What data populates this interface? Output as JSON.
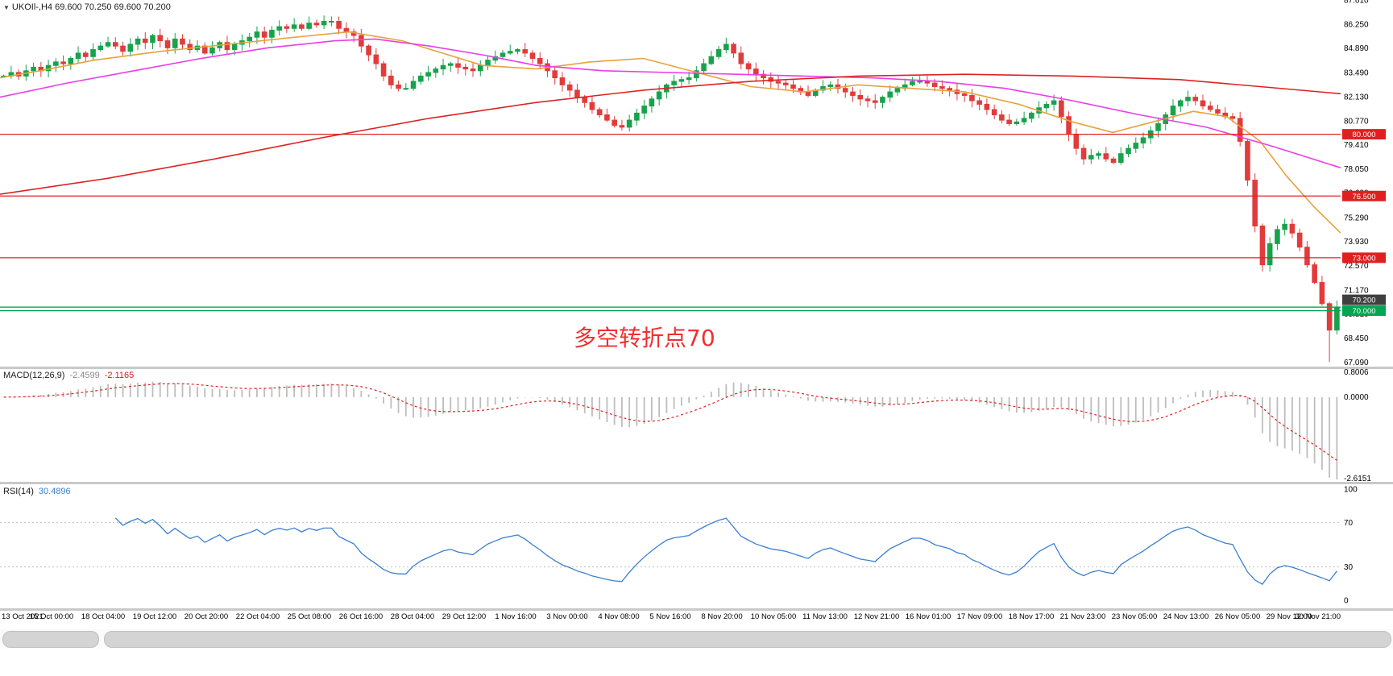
{
  "header": {
    "marker": "▼",
    "symbol_tf": "UKOIl-,H4",
    "ohlc": "69.600 70.250 69.600 70.200"
  },
  "annotation": {
    "text": "多空转折点70",
    "color": "#f22e2e"
  },
  "price_axis": {
    "labels": [
      87.61,
      86.25,
      84.89,
      83.49,
      82.13,
      80.77,
      79.41,
      78.05,
      76.69,
      75.29,
      73.93,
      72.57,
      71.17,
      69.81,
      68.45,
      67.09
    ]
  },
  "hlines": [
    {
      "price": 80.0,
      "label": "80.000",
      "color": "#e02020"
    },
    {
      "price": 76.5,
      "label": "76.500",
      "color": "#e02020"
    },
    {
      "price": 73.0,
      "label": "73.000",
      "color": "#e02020"
    }
  ],
  "support_lines": {
    "prices": [
      70.2,
      70.0
    ],
    "label": "70.000",
    "color": "#00a651"
  },
  "current_price_tag": {
    "label": "70.200",
    "bg": "#3f3f3f"
  },
  "macd_panel": {
    "name": "MACD(12,26,9)",
    "main_value": "-2.4599",
    "signal_value": "-2.1165",
    "axis_labels": [
      "0.8006",
      "0.0000",
      "-2.6151"
    ],
    "axis_values": [
      0.8006,
      0.0,
      -2.6151
    ],
    "histogram_color": "#bdbdbd",
    "signal_color": "#e02020"
  },
  "rsi_panel": {
    "name": "RSI(14)",
    "value": "30.4896",
    "axis_labels": [
      "100",
      "70",
      "30",
      "0"
    ],
    "levels": [
      70,
      30
    ],
    "line_color": "#3b7fd0"
  },
  "chart_data": {
    "type": "candlestick",
    "title": "UKOIl-,H4",
    "symbol": "UKOIl-",
    "timeframe": "H4",
    "current_ohlc": {
      "open": 69.6,
      "high": 70.25,
      "low": 69.6,
      "close": 70.2
    },
    "ylim": [
      66.83,
      87.61
    ],
    "up_color": "#18a24c",
    "down_color": "#e23b3b",
    "x_labels": [
      "13 Oct 2021",
      "15 Oct 00:00",
      "18 Oct 04:00",
      "19 Oct 12:00",
      "20 Oct 20:00",
      "22 Oct 04:00",
      "25 Oct 08:00",
      "26 Oct 16:00",
      "28 Oct 04:00",
      "29 Oct 12:00",
      "1 Nov 16:00",
      "3 Nov 00:00",
      "4 Nov 08:00",
      "5 Nov 16:00",
      "8 Nov 20:00",
      "10 Nov 05:00",
      "11 Nov 13:00",
      "12 Nov 21:00",
      "16 Nov 01:00",
      "17 Nov 09:00",
      "18 Nov 17:00",
      "21 Nov 23:00",
      "23 Nov 05:00",
      "24 Nov 13:00",
      "26 Nov 05:00",
      "29 Nov 12:00",
      "30 Nov 21:00"
    ],
    "closes": [
      83.3,
      83.5,
      83.3,
      83.6,
      83.8,
      83.6,
      83.9,
      84.1,
      84.0,
      84.3,
      84.6,
      84.4,
      84.8,
      85.0,
      85.2,
      85.0,
      84.7,
      85.1,
      85.4,
      85.2,
      85.6,
      85.3,
      84.9,
      85.4,
      85.1,
      84.8,
      85.0,
      84.6,
      84.9,
      85.2,
      84.8,
      85.1,
      85.3,
      85.5,
      85.8,
      85.5,
      85.9,
      86.1,
      86.0,
      86.2,
      86.0,
      86.3,
      86.2,
      86.4,
      86.4,
      86.0,
      85.8,
      85.6,
      85.0,
      84.5,
      84.0,
      83.3,
      82.8,
      82.6,
      82.6,
      83.0,
      83.3,
      83.5,
      83.7,
      83.9,
      84.0,
      83.8,
      83.7,
      83.6,
      83.9,
      84.2,
      84.4,
      84.6,
      84.7,
      84.8,
      84.6,
      84.3,
      84.0,
      83.6,
      83.2,
      82.8,
      82.5,
      82.1,
      81.8,
      81.4,
      81.1,
      80.8,
      80.5,
      80.4,
      80.8,
      81.2,
      81.6,
      82.0,
      82.4,
      82.8,
      83.0,
      83.1,
      83.2,
      83.6,
      84.0,
      84.4,
      84.8,
      85.1,
      84.6,
      84.0,
      83.7,
      83.4,
      83.2,
      83.0,
      82.9,
      82.8,
      82.6,
      82.4,
      82.2,
      82.5,
      82.7,
      82.8,
      82.6,
      82.4,
      82.2,
      82.0,
      81.9,
      81.8,
      82.1,
      82.4,
      82.6,
      82.8,
      83.0,
      83.0,
      82.9,
      82.7,
      82.6,
      82.5,
      82.3,
      82.2,
      81.9,
      81.7,
      81.4,
      81.1,
      80.8,
      80.6,
      80.7,
      80.9,
      81.2,
      81.5,
      81.7,
      81.9,
      81.0,
      80.0,
      79.2,
      78.6,
      78.8,
      78.9,
      78.6,
      78.4,
      78.9,
      79.2,
      79.5,
      79.8,
      80.2,
      80.6,
      81.1,
      81.6,
      81.9,
      82.1,
      81.9,
      81.6,
      81.4,
      81.2,
      81.0,
      80.9,
      79.6,
      77.4,
      74.8,
      72.6,
      73.8,
      74.6,
      74.9,
      74.4,
      73.6,
      72.6,
      71.6,
      70.4,
      68.9,
      70.2
    ],
    "wick_lows": {
      "178": 67.09
    },
    "moving_averages": [
      {
        "name": "ma-fast",
        "color": "#e6a23c",
        "points": [
          [
            0,
            83.2
          ],
          [
            0.03,
            83.6
          ],
          [
            0.07,
            84.2
          ],
          [
            0.12,
            84.7
          ],
          [
            0.17,
            85.1
          ],
          [
            0.22,
            85.5
          ],
          [
            0.26,
            85.8
          ],
          [
            0.3,
            85.3
          ],
          [
            0.33,
            84.6
          ],
          [
            0.36,
            83.9
          ],
          [
            0.4,
            83.7
          ],
          [
            0.44,
            84.1
          ],
          [
            0.48,
            84.3
          ],
          [
            0.52,
            83.5
          ],
          [
            0.56,
            82.7
          ],
          [
            0.6,
            82.4
          ],
          [
            0.64,
            82.8
          ],
          [
            0.68,
            82.6
          ],
          [
            0.72,
            82.4
          ],
          [
            0.76,
            81.7
          ],
          [
            0.8,
            80.7
          ],
          [
            0.83,
            80.1
          ],
          [
            0.86,
            80.7
          ],
          [
            0.89,
            81.3
          ],
          [
            0.915,
            81.0
          ],
          [
            0.94,
            79.6
          ],
          [
            0.96,
            77.6
          ],
          [
            0.98,
            75.9
          ],
          [
            1,
            74.4
          ]
        ]
      },
      {
        "name": "ma-mid",
        "color": "#e93de9",
        "points": [
          [
            0,
            82.1
          ],
          [
            0.05,
            82.9
          ],
          [
            0.1,
            83.6
          ],
          [
            0.15,
            84.3
          ],
          [
            0.2,
            84.9
          ],
          [
            0.25,
            85.3
          ],
          [
            0.28,
            85.4
          ],
          [
            0.32,
            85.0
          ],
          [
            0.36,
            84.5
          ],
          [
            0.4,
            83.9
          ],
          [
            0.45,
            83.6
          ],
          [
            0.5,
            83.5
          ],
          [
            0.55,
            83.4
          ],
          [
            0.6,
            83.3
          ],
          [
            0.65,
            83.2
          ],
          [
            0.7,
            83.0
          ],
          [
            0.75,
            82.6
          ],
          [
            0.8,
            81.9
          ],
          [
            0.85,
            81.1
          ],
          [
            0.9,
            80.4
          ],
          [
            0.95,
            79.3
          ],
          [
            1,
            78.1
          ]
        ]
      },
      {
        "name": "ma-slow",
        "color": "#dd2222",
        "points": [
          [
            0,
            76.6
          ],
          [
            0.08,
            77.5
          ],
          [
            0.16,
            78.6
          ],
          [
            0.24,
            79.8
          ],
          [
            0.32,
            80.9
          ],
          [
            0.4,
            81.8
          ],
          [
            0.48,
            82.5
          ],
          [
            0.56,
            83.0
          ],
          [
            0.64,
            83.3
          ],
          [
            0.72,
            83.4
          ],
          [
            0.8,
            83.3
          ],
          [
            0.88,
            83.1
          ],
          [
            0.94,
            82.7
          ],
          [
            1,
            82.3
          ]
        ]
      }
    ]
  }
}
